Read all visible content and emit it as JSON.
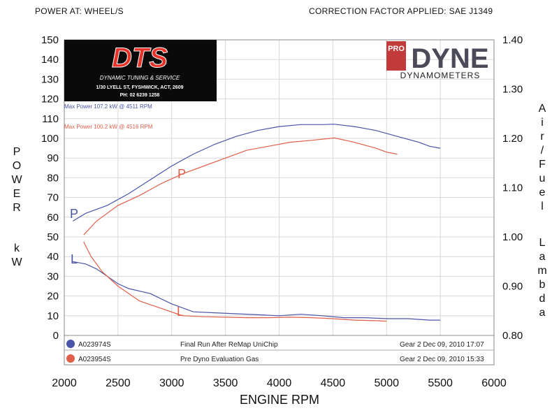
{
  "header": {
    "left": "POWER AT: WHEEL/S",
    "right": "CORRECTION FACTOR APPLIED: SAE J1349"
  },
  "logo_dts": {
    "brand": "DTS",
    "tagline": "DYNAMIC TUNING & SERVICE",
    "address": "1/30 LYELL ST, FYSHWICK, ACT, 2609",
    "phone": "PH: 02 6239 1258"
  },
  "logo_prodyne": {
    "pro": "PRO",
    "dyne": "DYNE",
    "sub": "DYNAMOMETERS"
  },
  "peaks": [
    {
      "text": "Max Power 107.2 kW @ 4511 RPM",
      "color": "#4a55a8"
    },
    {
      "text": "Max Power 100.2 kW @ 4516 RPM",
      "color": "#e0604a"
    }
  ],
  "legend": [
    {
      "id": "A023974S",
      "desc": "Final Run After ReMap UniChip",
      "info": "Gear 2 Dec 09, 2010 17:07",
      "color": "#4a55a8"
    },
    {
      "id": "A023954S",
      "desc": "Pre Dyno Evaluation Gas",
      "info": "Gear 2 Dec 09, 2010 15:33",
      "color": "#e0604a"
    }
  ],
  "chart_data": {
    "type": "line",
    "xlabel": "ENGINE RPM",
    "ylabel_left": "POWER kW",
    "ylabel_right": "Air/Fuel Lambda",
    "xlim": [
      2000,
      6000
    ],
    "ylim_left": [
      0,
      150
    ],
    "ylim_right": [
      0.8,
      1.4
    ],
    "x_ticks": [
      2000,
      2500,
      3000,
      3500,
      4000,
      4500,
      5000,
      5500,
      6000
    ],
    "y_ticks_left": [
      0,
      10,
      20,
      30,
      40,
      50,
      60,
      70,
      80,
      90,
      100,
      110,
      120,
      130,
      140,
      150
    ],
    "y_ticks_right": [
      "0.80",
      "0.90",
      "1.00",
      "1.10",
      "1.20",
      "1.30",
      "1.40"
    ],
    "grid": true,
    "curve_labels": {
      "power": "P",
      "lambda": "L"
    },
    "series": [
      {
        "name": "A023974S",
        "color": "#4a55a8",
        "power": [
          [
            2080,
            58
          ],
          [
            2200,
            62
          ],
          [
            2400,
            66
          ],
          [
            2600,
            72
          ],
          [
            2800,
            79
          ],
          [
            3000,
            86
          ],
          [
            3200,
            92
          ],
          [
            3400,
            97
          ],
          [
            3600,
            101
          ],
          [
            3800,
            104
          ],
          [
            4000,
            106
          ],
          [
            4200,
            107
          ],
          [
            4400,
            107
          ],
          [
            4511,
            107.2
          ],
          [
            4700,
            106
          ],
          [
            4900,
            104
          ],
          [
            5100,
            101
          ],
          [
            5300,
            98
          ],
          [
            5400,
            96
          ],
          [
            5500,
            95
          ]
        ],
        "lambda": [
          [
            2080,
            0.95
          ],
          [
            2200,
            0.945
          ],
          [
            2300,
            0.935
          ],
          [
            2400,
            0.92
          ],
          [
            2500,
            0.905
          ],
          [
            2600,
            0.895
          ],
          [
            2800,
            0.885
          ],
          [
            3000,
            0.864
          ],
          [
            3200,
            0.848
          ],
          [
            3400,
            0.846
          ],
          [
            3600,
            0.844
          ],
          [
            3800,
            0.842
          ],
          [
            4000,
            0.84
          ],
          [
            4200,
            0.843
          ],
          [
            4400,
            0.84
          ],
          [
            4600,
            0.836
          ],
          [
            4800,
            0.836
          ],
          [
            5000,
            0.834
          ],
          [
            5200,
            0.834
          ],
          [
            5400,
            0.831
          ],
          [
            5500,
            0.831
          ]
        ]
      },
      {
        "name": "A023954S",
        "color": "#e0604a",
        "power": [
          [
            2180,
            51
          ],
          [
            2300,
            58
          ],
          [
            2500,
            66
          ],
          [
            2700,
            71
          ],
          [
            2900,
            77
          ],
          [
            3100,
            82
          ],
          [
            3300,
            86
          ],
          [
            3500,
            90
          ],
          [
            3700,
            94
          ],
          [
            3900,
            96
          ],
          [
            4100,
            98
          ],
          [
            4300,
            99
          ],
          [
            4516,
            100.2
          ],
          [
            4700,
            98
          ],
          [
            4900,
            95
          ],
          [
            5000,
            93
          ],
          [
            5100,
            92
          ]
        ],
        "lambda": [
          [
            2180,
            0.99
          ],
          [
            2250,
            0.96
          ],
          [
            2350,
            0.93
          ],
          [
            2500,
            0.9
          ],
          [
            2700,
            0.87
          ],
          [
            2900,
            0.855
          ],
          [
            3100,
            0.84
          ],
          [
            3300,
            0.838
          ],
          [
            3500,
            0.837
          ],
          [
            3700,
            0.836
          ],
          [
            3900,
            0.836
          ],
          [
            4100,
            0.837
          ],
          [
            4300,
            0.836
          ],
          [
            4500,
            0.834
          ],
          [
            4700,
            0.831
          ],
          [
            4900,
            0.83
          ],
          [
            5000,
            0.829
          ]
        ]
      }
    ]
  }
}
